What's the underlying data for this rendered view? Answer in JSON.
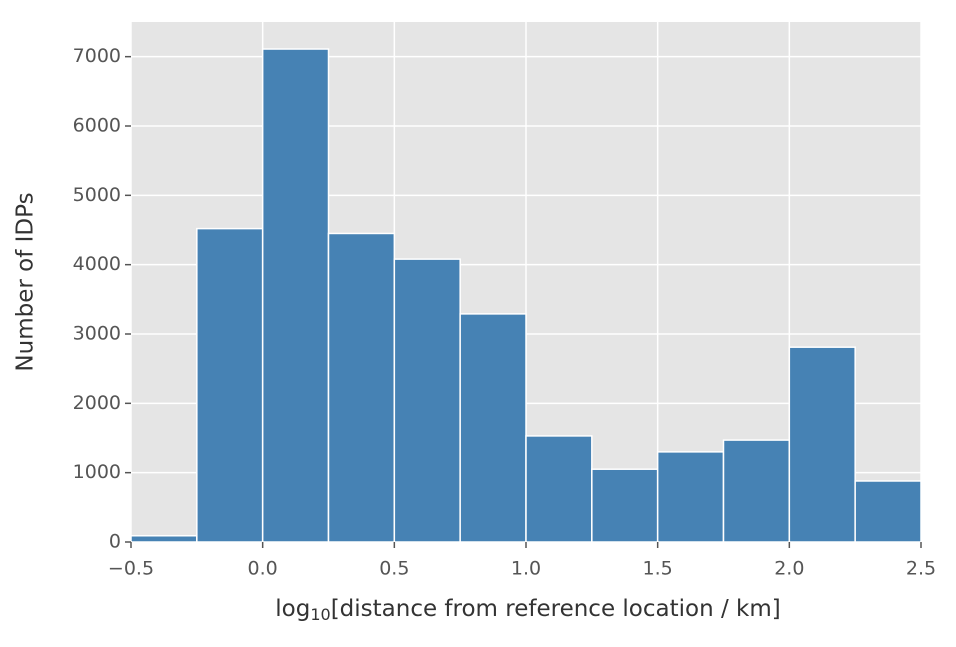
{
  "chart_data": {
    "type": "histogram",
    "xlabel": [
      "log",
      "10",
      "[distance from reference location / km]"
    ],
    "ylabel": "Number of IDPs",
    "bins": [
      -0.5,
      -0.25,
      0,
      0.25,
      0.5,
      0.75,
      1,
      1.25,
      1.5,
      1.75,
      2,
      2.25,
      2.5
    ],
    "values": [
      90,
      4520,
      7110,
      4450,
      4080,
      3290,
      1530,
      1050,
      1300,
      1470,
      2810,
      880
    ],
    "color": "#4682b4",
    "xlim": [
      -0.5,
      2.5
    ],
    "xticks": [
      {
        "value": -0.5,
        "label": "−0.5"
      },
      {
        "value": 0,
        "label": "0.0"
      },
      0.5,
      {
        "value": 1,
        "label": "1.0"
      },
      1.5,
      {
        "value": 2,
        "label": "2.0"
      },
      2.5
    ],
    "ylim": [
      0,
      7500
    ],
    "yticks": [
      0,
      1000,
      2000,
      3000,
      4000,
      5000,
      6000,
      7000
    ],
    "grid": true
  }
}
